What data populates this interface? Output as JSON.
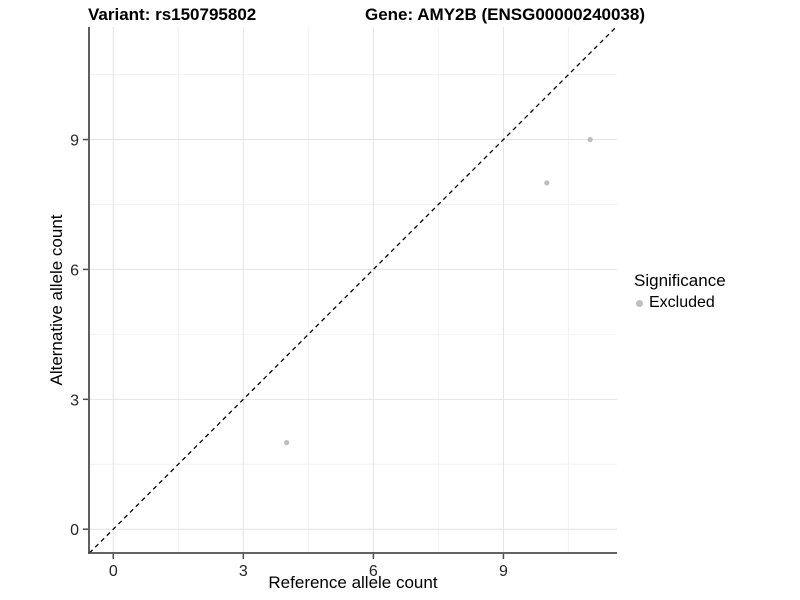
{
  "chart_data": {
    "type": "scatter",
    "title_variant": "Variant: rs150795802",
    "title_gene": "Gene: AMY2B (ENSG00000240038)",
    "xlabel": "Reference allele count",
    "ylabel": "Alternative allele count",
    "xlim": [
      -0.56,
      11.62
    ],
    "ylim": [
      -0.55,
      11.6
    ],
    "x_ticks": [
      0,
      3,
      6,
      9
    ],
    "y_ticks": [
      0,
      3,
      6,
      9
    ],
    "x_minor_ticks": [
      1.5,
      4.5,
      7.5,
      10.5
    ],
    "y_minor_ticks": [
      1.5,
      4.5,
      7.5,
      10.5
    ],
    "grid": true,
    "series": [
      {
        "name": "Excluded",
        "color": "#bebebe",
        "points": [
          {
            "x": 4,
            "y": 2
          },
          {
            "x": 10,
            "y": 8
          },
          {
            "x": 11,
            "y": 9
          }
        ]
      }
    ],
    "reference_line": {
      "type": "identity",
      "style": "dashed",
      "color": "#000000"
    },
    "legend": {
      "title": "Significance",
      "position": "right",
      "items": [
        {
          "label": "Excluded",
          "color": "#bebebe",
          "marker": "circle"
        }
      ]
    },
    "colors": {
      "grid_major": "#e4e4e4",
      "grid_minor": "#f2f2f2",
      "axis_line": "#4d4d4d",
      "tick_label": "#262626",
      "point": "#bebebe"
    }
  }
}
